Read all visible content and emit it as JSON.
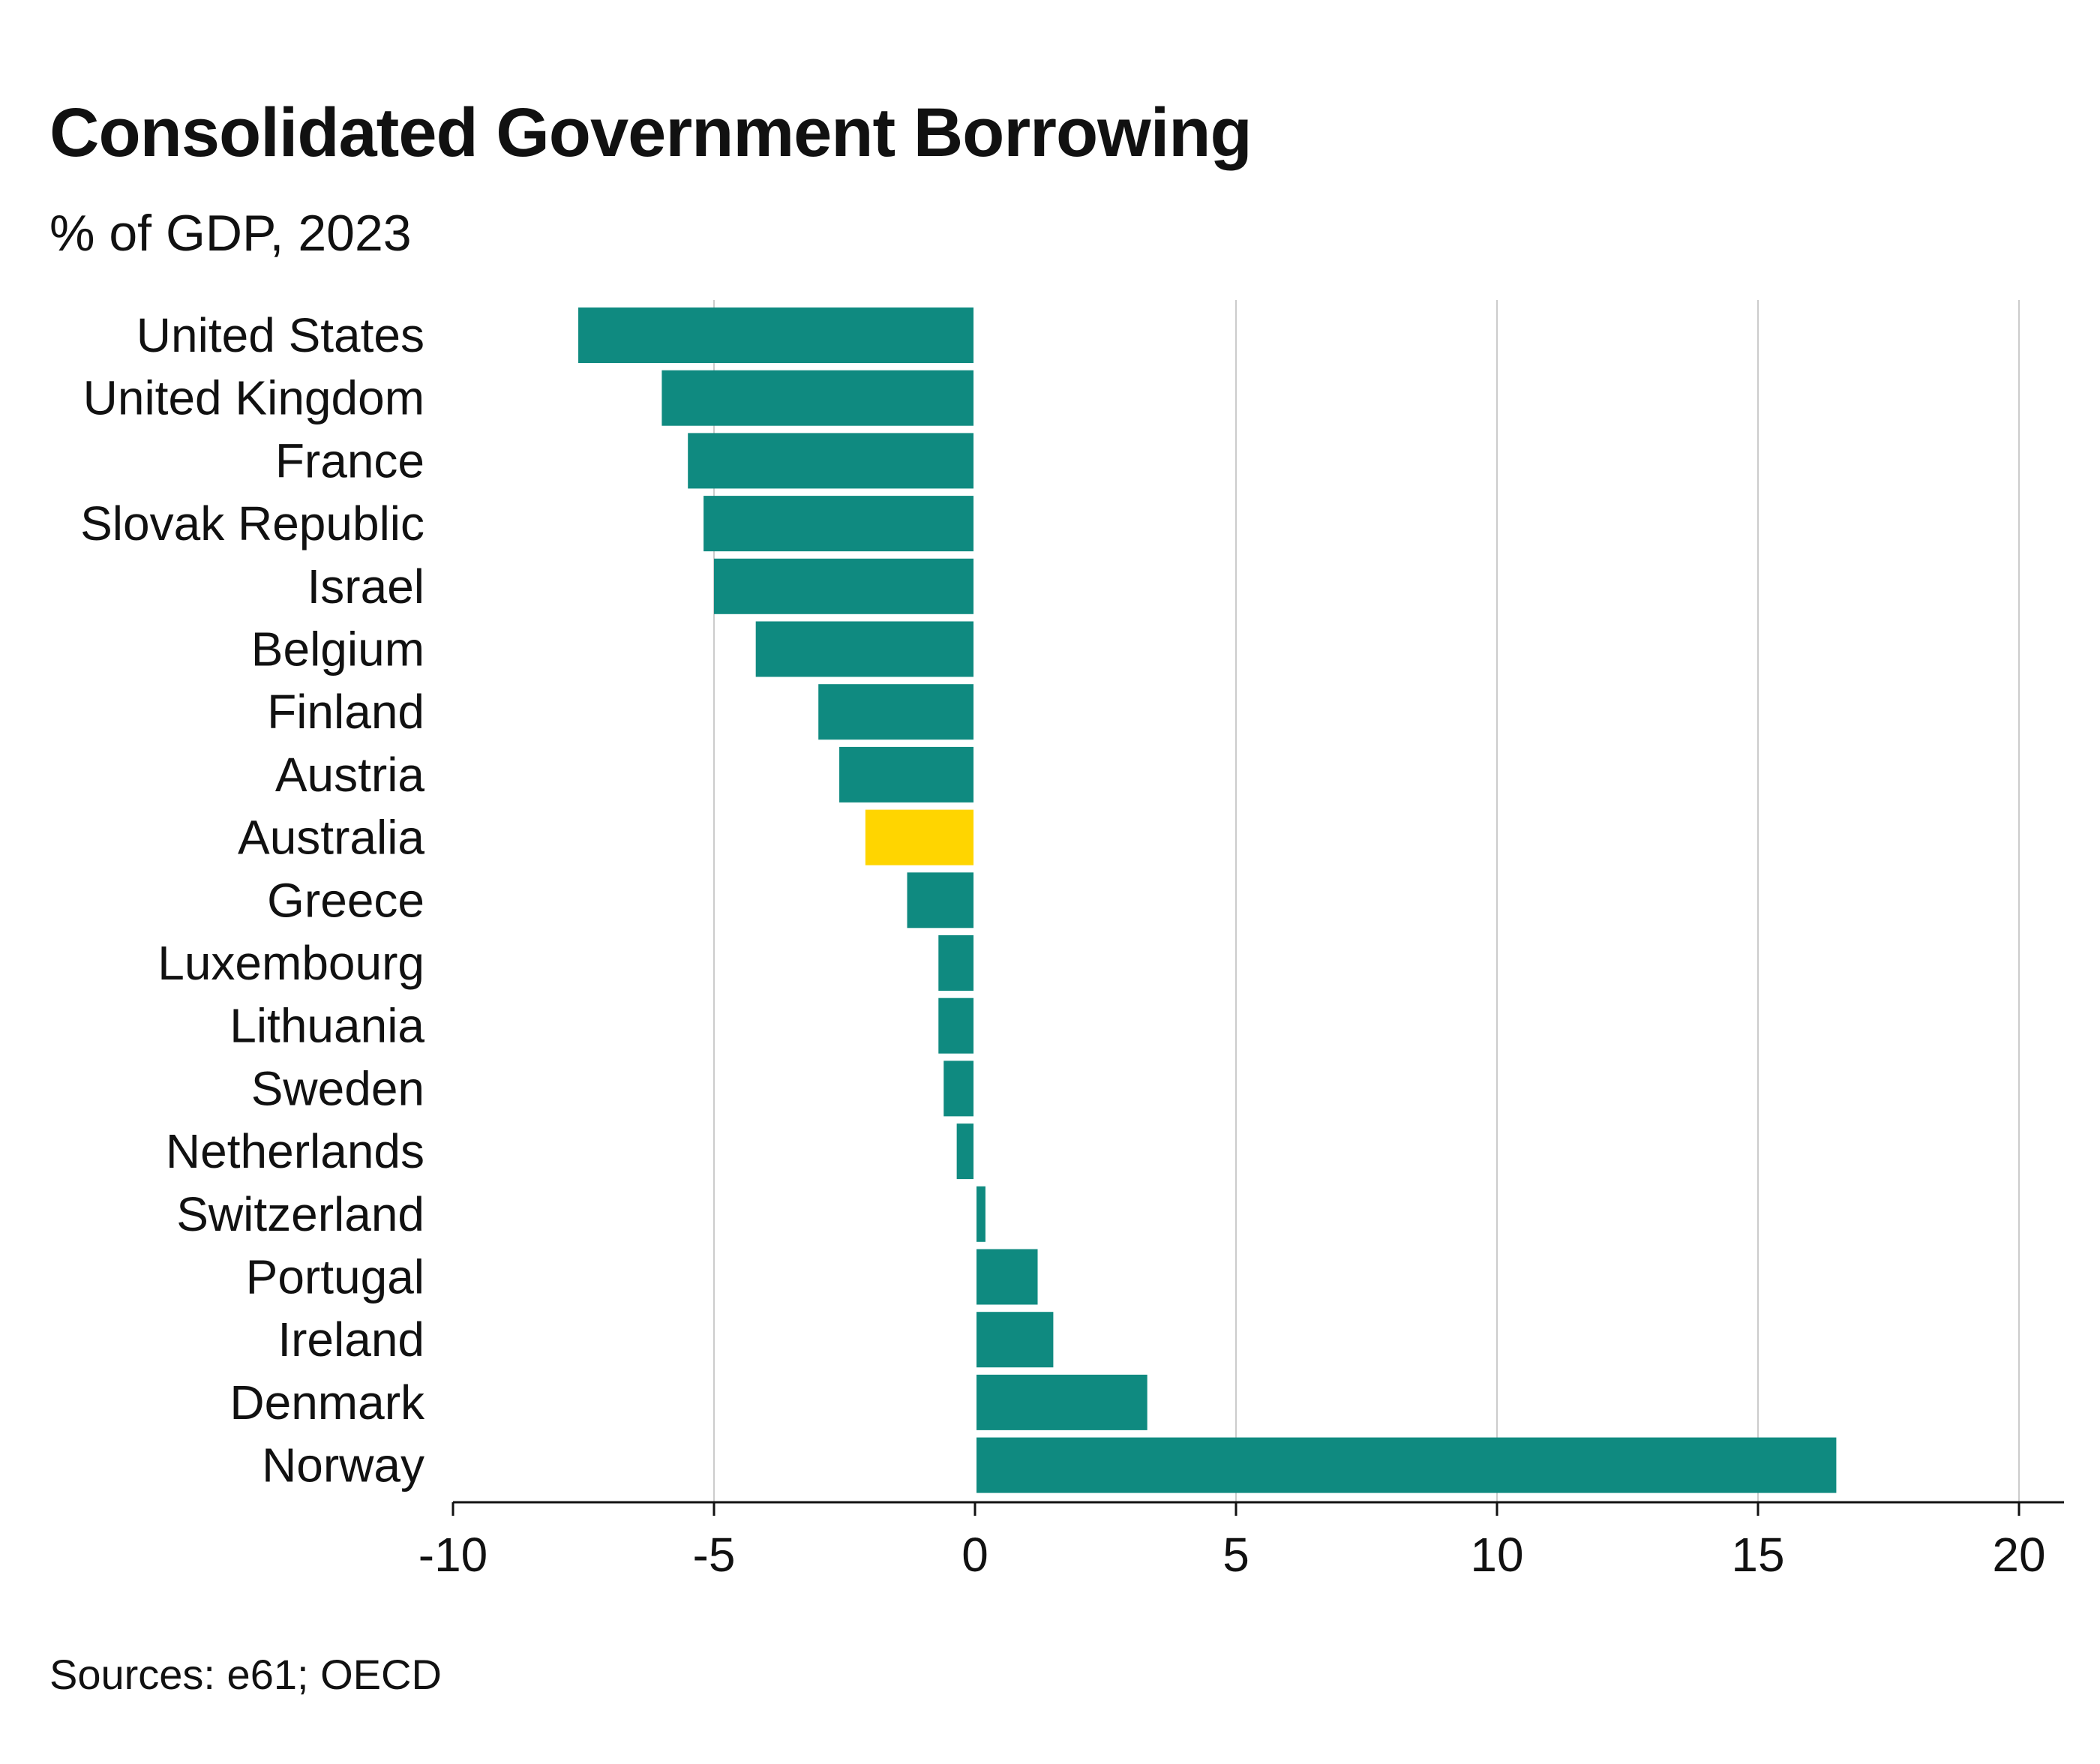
{
  "chart_data": {
    "type": "bar",
    "orientation": "horizontal",
    "title": "Consolidated Government Borrowing",
    "subtitle": "% of GDP, 2023",
    "source": "Sources: e61; OECD",
    "categories": [
      "United States",
      "United Kingdom",
      "France",
      "Slovak Republic",
      "Israel",
      "Belgium",
      "Finland",
      "Austria",
      "Australia",
      "Greece",
      "Luxembourg",
      "Lithuania",
      "Sweden",
      "Netherlands",
      "Switzerland",
      "Portugal",
      "Ireland",
      "Denmark",
      "Norway"
    ],
    "values": [
      -7.6,
      -6.0,
      -5.5,
      -5.2,
      -5.0,
      -4.2,
      -3.0,
      -2.6,
      -2.1,
      -1.3,
      -0.7,
      -0.7,
      -0.6,
      -0.35,
      0.2,
      1.2,
      1.5,
      3.3,
      16.5
    ],
    "highlight": "Australia",
    "xlim": [
      -10,
      20
    ],
    "xticks": [
      -10,
      -5,
      0,
      5,
      10,
      15,
      20
    ],
    "grid": true,
    "colors": {
      "bar": "#0f8a80",
      "highlight": "#ffd500",
      "grid": "#cccccc",
      "axis": "#111111"
    }
  }
}
